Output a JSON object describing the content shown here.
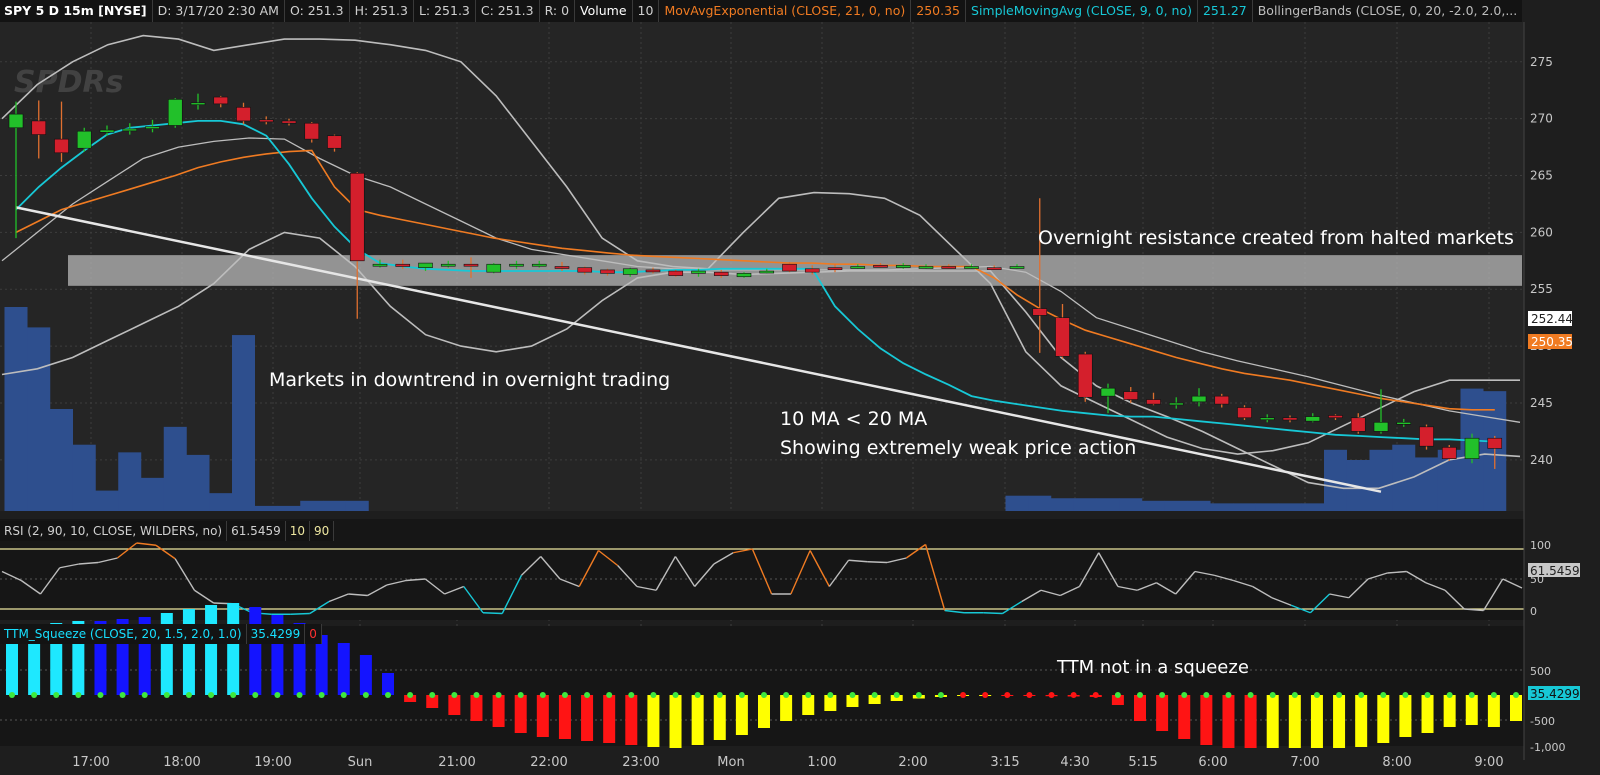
{
  "header": {
    "symbol": "SPY 5 D 15m [NYSE]",
    "date": "D: 3/17/20 2:30 AM",
    "open": "O: 251.3",
    "high": "H: 251.3",
    "low": "L: 251.3",
    "close": "C: 251.3",
    "range": "R: 0",
    "volume_label": "Volume",
    "volume_value": "10",
    "ema_label": "MovAvgExponential (CLOSE, 21, 0, no)",
    "ema_value": "250.35",
    "sma_label": "SimpleMovingAvg (CLOSE, 9, 0, no)",
    "sma_value": "251.27",
    "bb_label": "BollingerBands (CLOSE, 0, 20, -2.0, 2.0,..."
  },
  "watermark": "SPDRs",
  "rsi_header": {
    "label": "RSI (2, 90, 10, CLOSE, WILDERS, no)",
    "value": "61.5459",
    "low": "10",
    "high": "90"
  },
  "ttm_header": {
    "label": "TTM_Squeeze (CLOSE, 20, 1.5, 2.0, 1.0)",
    "value": "35.4299",
    "signal": "0"
  },
  "annotations": {
    "resistance": "Overnight resistance created from halted markets",
    "downtrend": "Markets in downtrend in overnight trading",
    "ma_line1": "10 MA < 20 MA",
    "ma_line2": "Showing extremely weak price action",
    "ttm": "TTM not in a squeeze"
  },
  "price_badges": {
    "upper": "252.44",
    "ema": "250.35"
  },
  "rsi_badge": "61.5459",
  "ttm_badge": "35.4299",
  "colors": {
    "up": "#22c02a",
    "down": "#d41f2c",
    "ema": "#f07b22",
    "sma": "#17c8d6",
    "bb": "#bdbdbd",
    "volume": "#2e4f8e",
    "resistance": "#b8b8b8",
    "hist_cyan": "#1ee8ff",
    "hist_blue": "#1414ff",
    "hist_red": "#ff1414",
    "hist_yellow": "#ffff00",
    "dot_green": "#3ee83e"
  },
  "chart_data": [
    {
      "type": "candlestick",
      "title": "SPY 5 D 15m [NYSE]",
      "ylim": [
        235.5,
        278.5
      ],
      "yticks": [
        "240",
        "245",
        "250",
        "255",
        "260",
        "265",
        "270",
        "275"
      ],
      "x_labels": [
        "17:00",
        "18:00",
        "19:00",
        "Sun",
        "21:00",
        "22:00",
        "23:00",
        "Mon",
        "1:00",
        "2:00",
        "3:15",
        "4:30",
        "5:15",
        "6:00",
        "7:00",
        "8:00",
        "9:00"
      ],
      "candles": [
        {
          "o": 269.2,
          "h": 271.5,
          "l": 259.5,
          "c": 270.4
        },
        {
          "o": 269.8,
          "h": 271.6,
          "l": 266.5,
          "c": 268.6
        },
        {
          "o": 268.2,
          "h": 271.5,
          "l": 266.2,
          "c": 267.0
        },
        {
          "o": 267.4,
          "h": 269.2,
          "l": 267.1,
          "c": 268.9
        },
        {
          "o": 268.8,
          "h": 269.4,
          "l": 268.5,
          "c": 269.0
        },
        {
          "o": 269.0,
          "h": 269.6,
          "l": 268.6,
          "c": 269.1
        },
        {
          "o": 269.2,
          "h": 269.9,
          "l": 268.8,
          "c": 269.3
        },
        {
          "o": 269.4,
          "h": 271.8,
          "l": 269.2,
          "c": 271.7
        },
        {
          "o": 271.3,
          "h": 272.2,
          "l": 270.8,
          "c": 271.4
        },
        {
          "o": 271.9,
          "h": 272.0,
          "l": 271.0,
          "c": 271.3
        },
        {
          "o": 271.0,
          "h": 271.4,
          "l": 269.5,
          "c": 269.8
        },
        {
          "o": 269.9,
          "h": 270.2,
          "l": 269.5,
          "c": 269.8
        },
        {
          "o": 269.8,
          "h": 270.0,
          "l": 269.4,
          "c": 269.6
        },
        {
          "o": 269.6,
          "h": 269.7,
          "l": 267.9,
          "c": 268.2
        },
        {
          "o": 268.5,
          "h": 268.6,
          "l": 267.1,
          "c": 267.4
        },
        {
          "o": 265.2,
          "h": 265.3,
          "l": 252.4,
          "c": 257.5
        },
        {
          "o": 257.2,
          "h": 257.6,
          "l": 256.9,
          "c": 257.2
        },
        {
          "o": 257.2,
          "h": 257.6,
          "l": 256.8,
          "c": 257.0
        },
        {
          "o": 256.9,
          "h": 257.3,
          "l": 256.6,
          "c": 257.3
        },
        {
          "o": 257.2,
          "h": 257.5,
          "l": 256.9,
          "c": 257.2
        },
        {
          "o": 257.2,
          "h": 257.8,
          "l": 256.0,
          "c": 257.1
        },
        {
          "o": 256.5,
          "h": 257.3,
          "l": 256.4,
          "c": 257.2
        },
        {
          "o": 257.1,
          "h": 257.5,
          "l": 256.8,
          "c": 257.2
        },
        {
          "o": 257.2,
          "h": 257.5,
          "l": 256.9,
          "c": 257.2
        },
        {
          "o": 257.0,
          "h": 257.4,
          "l": 256.6,
          "c": 256.9
        },
        {
          "o": 256.9,
          "h": 257.0,
          "l": 256.3,
          "c": 256.5
        },
        {
          "o": 256.7,
          "h": 256.8,
          "l": 256.2,
          "c": 256.4
        },
        {
          "o": 256.3,
          "h": 256.9,
          "l": 256.1,
          "c": 256.8
        },
        {
          "o": 256.7,
          "h": 256.9,
          "l": 256.4,
          "c": 256.6
        },
        {
          "o": 256.6,
          "h": 256.7,
          "l": 256.1,
          "c": 256.2
        },
        {
          "o": 256.4,
          "h": 256.8,
          "l": 256.1,
          "c": 256.6
        },
        {
          "o": 256.5,
          "h": 256.7,
          "l": 256.0,
          "c": 256.2
        },
        {
          "o": 256.1,
          "h": 256.5,
          "l": 256.0,
          "c": 256.4
        },
        {
          "o": 256.5,
          "h": 256.8,
          "l": 256.4,
          "c": 256.6
        },
        {
          "o": 257.2,
          "h": 257.4,
          "l": 256.5,
          "c": 256.6
        },
        {
          "o": 256.8,
          "h": 257.1,
          "l": 256.3,
          "c": 256.5
        },
        {
          "o": 256.9,
          "h": 257.2,
          "l": 256.5,
          "c": 256.8
        },
        {
          "o": 257.0,
          "h": 257.2,
          "l": 256.8,
          "c": 257.0
        },
        {
          "o": 257.1,
          "h": 257.3,
          "l": 256.9,
          "c": 257.0
        },
        {
          "o": 256.9,
          "h": 257.3,
          "l": 256.8,
          "c": 257.1
        },
        {
          "o": 257.0,
          "h": 257.2,
          "l": 256.8,
          "c": 257.0
        },
        {
          "o": 257.0,
          "h": 257.2,
          "l": 256.8,
          "c": 256.9
        },
        {
          "o": 257.0,
          "h": 257.2,
          "l": 256.8,
          "c": 257.0
        },
        {
          "o": 256.9,
          "h": 257.1,
          "l": 256.7,
          "c": 256.8
        },
        {
          "o": 257.0,
          "h": 257.2,
          "l": 256.8,
          "c": 257.0
        },
        {
          "o": 253.3,
          "h": 263.0,
          "l": 249.4,
          "c": 252.7
        },
        {
          "o": 252.5,
          "h": 253.7,
          "l": 248.9,
          "c": 249.1
        },
        {
          "o": 249.3,
          "h": 249.5,
          "l": 245.1,
          "c": 245.5
        },
        {
          "o": 245.6,
          "h": 246.7,
          "l": 244.1,
          "c": 246.3
        },
        {
          "o": 246.0,
          "h": 246.4,
          "l": 245.0,
          "c": 245.3
        },
        {
          "o": 245.3,
          "h": 245.9,
          "l": 244.8,
          "c": 244.9
        },
        {
          "o": 244.9,
          "h": 245.5,
          "l": 244.5,
          "c": 245.0
        },
        {
          "o": 245.1,
          "h": 246.3,
          "l": 244.7,
          "c": 245.6
        },
        {
          "o": 245.6,
          "h": 245.8,
          "l": 244.6,
          "c": 244.9
        },
        {
          "o": 244.6,
          "h": 244.8,
          "l": 243.5,
          "c": 243.7
        },
        {
          "o": 243.6,
          "h": 244.0,
          "l": 243.3,
          "c": 243.7
        },
        {
          "o": 243.7,
          "h": 243.9,
          "l": 243.3,
          "c": 243.5
        },
        {
          "o": 243.4,
          "h": 244.1,
          "l": 243.3,
          "c": 243.8
        },
        {
          "o": 243.9,
          "h": 244.0,
          "l": 243.5,
          "c": 243.7
        },
        {
          "o": 243.7,
          "h": 244.1,
          "l": 242.3,
          "c": 242.5
        },
        {
          "o": 242.5,
          "h": 246.2,
          "l": 242.3,
          "c": 243.3
        },
        {
          "o": 243.3,
          "h": 243.6,
          "l": 242.9,
          "c": 243.3
        },
        {
          "o": 242.9,
          "h": 243.1,
          "l": 240.9,
          "c": 241.2
        },
        {
          "o": 241.1,
          "h": 241.3,
          "l": 239.9,
          "c": 240.1
        },
        {
          "o": 240.1,
          "h": 242.3,
          "l": 239.7,
          "c": 241.9
        },
        {
          "o": 241.9,
          "h": 242.1,
          "l": 239.2,
          "c": 241.0
        }
      ],
      "volume": [
        80,
        72,
        40,
        26,
        8,
        23,
        13,
        33,
        22,
        7,
        69,
        2,
        2,
        4,
        4,
        4,
        0,
        0,
        0,
        0,
        0,
        0,
        0,
        0,
        0,
        0,
        0,
        0,
        0,
        0,
        0,
        0,
        0,
        0,
        0,
        0,
        0,
        0,
        0,
        0,
        0,
        0,
        0,
        0,
        6,
        6,
        5,
        5,
        5,
        5,
        4,
        4,
        4,
        3,
        3,
        3,
        3,
        3,
        24,
        20,
        24,
        26,
        21,
        24,
        48,
        47
      ],
      "ema21": [
        260.0,
        261.0,
        262.0,
        262.6,
        263.2,
        263.8,
        264.4,
        265.0,
        265.7,
        266.2,
        266.6,
        266.9,
        267.1,
        267.2,
        264.0,
        262.0,
        261.5,
        261.1,
        260.7,
        260.3,
        259.9,
        259.5,
        259.2,
        258.9,
        258.6,
        258.4,
        258.2,
        258.0,
        257.9,
        257.8,
        257.7,
        257.6,
        257.5,
        257.4,
        257.3,
        257.3,
        257.2,
        257.2,
        257.1,
        257.1,
        257.0,
        257.0,
        257.0,
        256.0,
        254.5,
        253.3,
        252.3,
        251.4,
        250.8,
        250.2,
        249.6,
        249.0,
        248.5,
        248.0,
        247.6,
        247.3,
        247.0,
        246.6,
        246.2,
        245.8,
        245.4,
        245.1,
        244.8,
        244.5,
        244.4,
        244.4
      ],
      "sma10": [
        262.0,
        264.0,
        265.7,
        267.2,
        268.6,
        269.2,
        269.4,
        269.6,
        269.8,
        269.8,
        269.5,
        268.5,
        266.0,
        263.0,
        260.5,
        258.5,
        257.3,
        257.0,
        256.8,
        256.7,
        256.6,
        256.6,
        256.6,
        256.6,
        256.6,
        256.6,
        256.5,
        256.5,
        256.6,
        256.7,
        256.7,
        256.8,
        256.8,
        256.8,
        256.8,
        256.8,
        253.5,
        251.5,
        249.8,
        248.5,
        247.5,
        246.6,
        245.6,
        245.2,
        244.9,
        244.6,
        244.3,
        244.1,
        243.9,
        243.8,
        243.8,
        243.6,
        243.4,
        243.2,
        243.0,
        242.8,
        242.6,
        242.4,
        242.2,
        242.1,
        242.0,
        241.9,
        241.8,
        241.8,
        241.7,
        241.6
      ],
      "bb_upper": [
        270.0,
        273.0,
        275.0,
        276.5,
        277.3,
        277.0,
        276.0,
        276.5,
        277.0,
        277.0,
        276.9,
        276.5,
        276.0,
        275.0,
        272.0,
        268.0,
        264.0,
        259.5,
        257.5,
        257.0,
        256.8,
        260.0,
        263.0,
        263.5,
        263.4,
        263.0,
        261.5,
        258.5,
        255.5,
        249.5,
        246.5,
        245.0,
        243.5,
        242.0,
        241.0,
        240.5,
        240.8,
        241.5,
        243.0,
        244.5,
        246.0,
        247.0,
        247.0,
        247.0
      ],
      "bb_middle": [
        257.5,
        260.0,
        262.5,
        264.5,
        266.5,
        267.5,
        268.0,
        268.3,
        268.2,
        266.5,
        265.0,
        264.0,
        262.5,
        261.0,
        259.5,
        258.5,
        258.0,
        257.5,
        257.0,
        256.8,
        256.7,
        256.7,
        256.7,
        256.7,
        256.7,
        256.7,
        256.8,
        256.9,
        257.0,
        256.5,
        254.8,
        252.5,
        251.5,
        250.5,
        249.5,
        248.7,
        248.0,
        247.3,
        246.5,
        245.7,
        245.0,
        244.3,
        243.8,
        243.3
      ],
      "bb_lower": [
        247.5,
        248.0,
        249.0,
        250.5,
        252.0,
        253.5,
        255.5,
        258.5,
        260.0,
        259.5,
        257.0,
        253.5,
        251.0,
        250.0,
        249.5,
        250.0,
        251.5,
        254.0,
        256.0,
        256.5,
        256.5,
        256.3,
        256.4,
        256.5,
        256.6,
        256.6,
        256.6,
        256.6,
        256.6,
        253.0,
        249.0,
        246.5,
        245.0,
        243.8,
        242.5,
        241.0,
        239.5,
        238.0,
        237.5,
        237.5,
        238.5,
        240.0,
        240.5,
        240.3
      ],
      "trend_line": [
        [
          262.2,
          1
        ],
        [
          237.2,
          61
        ]
      ],
      "resistance_zone": [
        255.3,
        258.0
      ]
    },
    {
      "type": "line",
      "title": "RSI (2, 90, 10, CLOSE, WILDERS, no)",
      "ylim": [
        0,
        100
      ],
      "levels": [
        10,
        90
      ],
      "yticks": [
        "100",
        "50",
        "0"
      ],
      "values": [
        60,
        48,
        30,
        65,
        70,
        72,
        78,
        98,
        95,
        77,
        35,
        18,
        17,
        5,
        3,
        3,
        4,
        20,
        30,
        28,
        42,
        48,
        50,
        30,
        40,
        5,
        4,
        55,
        80,
        50,
        40,
        88,
        68,
        40,
        35,
        80,
        40,
        70,
        85,
        90,
        30,
        30,
        88,
        40,
        75,
        73,
        72,
        78,
        96,
        8,
        5,
        5,
        4,
        20,
        35,
        28,
        40,
        85,
        40,
        35,
        45,
        30,
        60,
        55,
        48,
        40,
        25,
        15,
        5,
        30,
        25,
        50,
        58,
        60,
        45,
        35,
        10,
        8,
        50,
        38
      ]
    },
    {
      "type": "bar",
      "title": "TTM_Squeeze (CLOSE, 20, 1.5, 2.0, 1.0)",
      "ylim": [
        -1100,
        1100
      ],
      "yticks": [
        "500",
        "-500",
        "-1,000"
      ],
      "values": [
        650,
        700,
        720,
        740,
        740,
        760,
        780,
        820,
        860,
        900,
        920,
        880,
        800,
        720,
        600,
        520,
        400,
        220,
        -70,
        -130,
        -200,
        -260,
        -320,
        -380,
        -420,
        -440,
        -460,
        -480,
        -500,
        -520,
        -540,
        -500,
        -450,
        -400,
        -330,
        -260,
        -200,
        -160,
        -120,
        -90,
        -60,
        -35,
        -20,
        -10,
        -5,
        -8,
        -10,
        -12,
        -15,
        -20,
        -100,
        -260,
        -360,
        -440,
        -500,
        -560,
        -600,
        -640,
        -620,
        -600,
        -560,
        -520,
        -480,
        -420,
        -380,
        -320,
        -300,
        -320,
        -260
      ]
    }
  ]
}
